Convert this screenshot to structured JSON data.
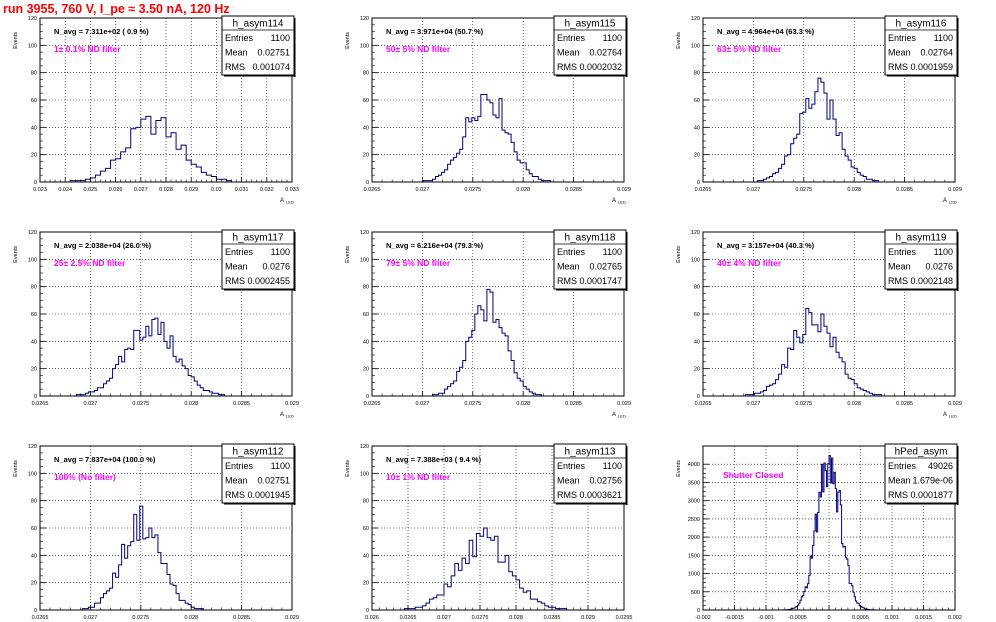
{
  "page_title": "run 3955,   760 V, I_pe ≈ 3.50 nA, 120 Hz",
  "colors": {
    "title": "#ff0000",
    "histogram": "#00007f",
    "annotation": "#ff00ff",
    "grid": "#000000",
    "frame": "#000000"
  },
  "stat_labels": {
    "entries": "Entries",
    "mean": "Mean",
    "rms": "RMS"
  },
  "chart_data": [
    {
      "type": "histogram",
      "name": "h_asym114",
      "ylabel": "Events",
      "xlabel": "A",
      "xlabel_sub": "LED",
      "xlim": [
        0.023,
        0.033
      ],
      "ylim": [
        0,
        120
      ],
      "xticks": [
        0.023,
        0.024,
        0.025,
        0.026,
        0.027,
        0.028,
        0.029,
        0.03,
        0.031,
        0.032,
        0.033
      ],
      "xtick_labels": [
        "0.023",
        "0.024",
        "0.025",
        "0.026",
        "0.027",
        "0.028",
        "0.029",
        "0.03",
        "0.031",
        "0.032",
        "0.033"
      ],
      "yticks": [
        0,
        20,
        40,
        60,
        80,
        100,
        120
      ],
      "ytick_labels": [
        "0",
        "20",
        "40",
        "60",
        "80",
        "100",
        "120"
      ],
      "stats": {
        "entries": "1100",
        "mean": "0.02751",
        "rms": "0.001074"
      },
      "n_avg": "N_avg = 7.311e+02 ( 0.9 %)",
      "annotation": "1± 0.1% ND filter",
      "grid": true,
      "bins": {
        "mean": 0.02751,
        "sigma": 0.001074,
        "peak": 43,
        "width": 0.0002
      }
    },
    {
      "type": "histogram",
      "name": "h_asym115",
      "ylabel": "Events",
      "xlabel": "A",
      "xlabel_sub": "LED",
      "xlim": [
        0.0265,
        0.029
      ],
      "ylim": [
        0,
        120
      ],
      "xticks": [
        0.0265,
        0.027,
        0.0275,
        0.028,
        0.0285,
        0.029
      ],
      "xtick_labels": [
        "0.0265",
        "0.027",
        "0.0275",
        "0.028",
        "0.0285",
        "0.029"
      ],
      "yticks": [
        0,
        20,
        40,
        60,
        80,
        100,
        120
      ],
      "ytick_labels": [
        "0",
        "20",
        "40",
        "60",
        "80",
        "100",
        "120"
      ],
      "stats": {
        "entries": "1100",
        "mean": "0.02764",
        "rms": "0.0002032"
      },
      "n_avg": "N_avg = 3.971e+04 (50.7 %)",
      "annotation": "50± 5% ND filter",
      "grid": true,
      "bins": {
        "mean": 0.02764,
        "sigma": 0.0002032,
        "peak": 64,
        "width": 3e-05
      }
    },
    {
      "type": "histogram",
      "name": "h_asym116",
      "ylabel": "Events",
      "xlabel": "A",
      "xlabel_sub": "LED",
      "xlim": [
        0.0265,
        0.029
      ],
      "ylim": [
        0,
        120
      ],
      "xticks": [
        0.0265,
        0.027,
        0.0275,
        0.028,
        0.0285,
        0.029
      ],
      "xtick_labels": [
        "0.0265",
        "0.027",
        "0.0275",
        "0.028",
        "0.0285",
        "0.029"
      ],
      "yticks": [
        0,
        20,
        40,
        60,
        80,
        100,
        120
      ],
      "ytick_labels": [
        "0",
        "20",
        "40",
        "60",
        "80",
        "100",
        "120"
      ],
      "stats": {
        "entries": "1100",
        "mean": "0.02764",
        "rms": "0.0001959"
      },
      "n_avg": "N_avg = 4.964e+04 (63.3 %)",
      "annotation": "63± 5% ND filter",
      "grid": true,
      "bins": {
        "mean": 0.02764,
        "sigma": 0.0001959,
        "peak": 64,
        "width": 3e-05
      }
    },
    {
      "type": "histogram",
      "name": "h_asym117",
      "ylabel": "Events",
      "xlabel": "A",
      "xlabel_sub": "LED",
      "xlim": [
        0.0265,
        0.029
      ],
      "ylim": [
        0,
        120
      ],
      "xticks": [
        0.0265,
        0.027,
        0.0275,
        0.028,
        0.0285,
        0.029
      ],
      "xtick_labels": [
        "0.0265",
        "0.027",
        "0.0275",
        "0.028",
        "0.0285",
        "0.029"
      ],
      "yticks": [
        0,
        20,
        40,
        60,
        80,
        100,
        120
      ],
      "ytick_labels": [
        "0",
        "20",
        "40",
        "60",
        "80",
        "100",
        "120"
      ],
      "stats": {
        "entries": "1100",
        "mean": "0.0276",
        "rms": "0.0002455"
      },
      "n_avg": "N_avg = 2.038e+04 (26.0 %)",
      "annotation": "25± 2.5% ND filter",
      "grid": true,
      "bins": {
        "mean": 0.0276,
        "sigma": 0.0002455,
        "peak": 52,
        "width": 3e-05
      }
    },
    {
      "type": "histogram",
      "name": "h_asym118",
      "ylabel": "Events",
      "xlabel": "A",
      "xlabel_sub": "LED",
      "xlim": [
        0.0265,
        0.029
      ],
      "ylim": [
        0,
        120
      ],
      "xticks": [
        0.0265,
        0.027,
        0.0275,
        0.028,
        0.0285,
        0.029
      ],
      "xtick_labels": [
        "0.0265",
        "0.027",
        "0.0275",
        "0.028",
        "0.0285",
        "0.029"
      ],
      "yticks": [
        0,
        20,
        40,
        60,
        80,
        100,
        120
      ],
      "ytick_labels": [
        "0",
        "20",
        "40",
        "60",
        "80",
        "100",
        "120"
      ],
      "stats": {
        "entries": "1100",
        "mean": "0.02765",
        "rms": "0.0001747"
      },
      "n_avg": "N_avg = 6.216e+04 (79.3 %)",
      "annotation": "79± 5% ND filter",
      "grid": true,
      "bins": {
        "mean": 0.02765,
        "sigma": 0.0001747,
        "peak": 67,
        "width": 3e-05
      }
    },
    {
      "type": "histogram",
      "name": "h_asym119",
      "ylabel": "Events",
      "xlabel": "A",
      "xlabel_sub": "LED",
      "xlim": [
        0.0265,
        0.029
      ],
      "ylim": [
        0,
        120
      ],
      "xticks": [
        0.0265,
        0.027,
        0.0275,
        0.028,
        0.0285,
        0.029
      ],
      "xtick_labels": [
        "0.0265",
        "0.027",
        "0.0275",
        "0.028",
        "0.0285",
        "0.029"
      ],
      "yticks": [
        0,
        20,
        40,
        60,
        80,
        100,
        120
      ],
      "ytick_labels": [
        "0",
        "20",
        "40",
        "60",
        "80",
        "100",
        "120"
      ],
      "stats": {
        "entries": "1100",
        "mean": "0.0276",
        "rms": "0.0002148"
      },
      "n_avg": "N_avg = 3.157e+04 (40.3 %)",
      "annotation": "40± 4% ND filter",
      "grid": true,
      "bins": {
        "mean": 0.0276,
        "sigma": 0.0002148,
        "peak": 58,
        "width": 3e-05
      }
    },
    {
      "type": "histogram",
      "name": "h_asym112",
      "ylabel": "Events",
      "xlabel": "A",
      "xlabel_sub": "LED",
      "xlim": [
        0.0265,
        0.029
      ],
      "ylim": [
        0,
        120
      ],
      "xticks": [
        0.0265,
        0.027,
        0.0275,
        0.028,
        0.0285,
        0.029
      ],
      "xtick_labels": [
        "0.0265",
        "0.027",
        "0.0275",
        "0.028",
        "0.0285",
        "0.029"
      ],
      "yticks": [
        0,
        20,
        40,
        60,
        80,
        100,
        120
      ],
      "ytick_labels": [
        "0",
        "20",
        "40",
        "60",
        "80",
        "100",
        "120"
      ],
      "stats": {
        "entries": "1100",
        "mean": "0.02751",
        "rms": "0.0001945"
      },
      "n_avg": "N_avg = 7.837e+04 (100.0 %)",
      "annotation": "100% (No filter)",
      "grid": true,
      "bins": {
        "mean": 0.02751,
        "sigma": 0.0001945,
        "peak": 64,
        "width": 3e-05
      }
    },
    {
      "type": "histogram",
      "name": "h_asym113",
      "ylabel": "Events",
      "xlabel": "A",
      "xlabel_sub": "LED",
      "xlim": [
        0.026,
        0.0295
      ],
      "ylim": [
        0,
        120
      ],
      "xticks": [
        0.026,
        0.0265,
        0.027,
        0.0275,
        0.028,
        0.0285,
        0.029,
        0.0295
      ],
      "xtick_labels": [
        "0.026",
        "0.0265",
        "0.027",
        "0.0275",
        "0.028",
        "0.0285",
        "0.029",
        "0.0295"
      ],
      "yticks": [
        0,
        20,
        40,
        60,
        80,
        100,
        120
      ],
      "ytick_labels": [
        "0",
        "20",
        "40",
        "60",
        "80",
        "100",
        "120"
      ],
      "stats": {
        "entries": "1100",
        "mean": "0.02756",
        "rms": "0.0003621"
      },
      "n_avg": "N_avg = 7.388e+03 ( 9.4 %)",
      "annotation": "10± 1% ND filter",
      "grid": true,
      "bins": {
        "mean": 0.02756,
        "sigma": 0.0003621,
        "peak": 51,
        "width": 5e-05
      }
    },
    {
      "type": "histogram",
      "name": "hPed_asym",
      "ylabel": "Events",
      "xlabel": "",
      "xlabel_sub": "",
      "xlim": [
        -0.002,
        0.002
      ],
      "ylim": [
        0,
        4500
      ],
      "xticks": [
        -0.002,
        -0.0015,
        -0.001,
        -0.0005,
        0,
        0.0005,
        0.001,
        0.0015,
        0.002
      ],
      "xtick_labels": [
        "-0.002",
        "-0.0015",
        "-0.001",
        "-0.0005",
        "0",
        "0.0005",
        "0.001",
        "0.0015",
        "0.002"
      ],
      "yticks": [
        0,
        500,
        1000,
        1500,
        2000,
        2500,
        3000,
        3500,
        4000
      ],
      "ytick_labels": [
        "0",
        "500",
        "1000",
        "1500",
        "2000",
        "2500",
        "3000",
        "3500",
        "4000"
      ],
      "stats": {
        "entries": "49026",
        "mean": "1.679e-06",
        "rms": "0.0001877"
      },
      "n_avg": "",
      "annotation": "Shutter Closed",
      "grid": true,
      "bins": {
        "mean": 0.0,
        "sigma": 0.0001877,
        "peak": 4200,
        "width": 2e-05
      }
    }
  ]
}
